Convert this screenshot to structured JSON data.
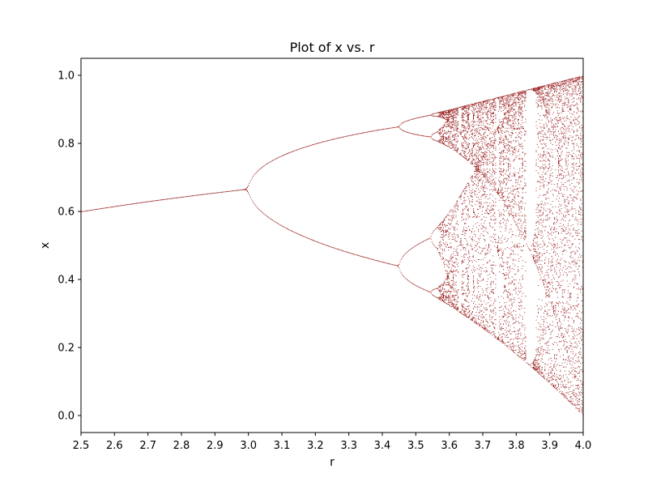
{
  "chart_data": {
    "type": "scatter",
    "title": "Plot of x vs. r",
    "xlabel": "r",
    "ylabel": "x",
    "xlim": [
      2.5,
      4.0
    ],
    "ylim": [
      -0.05,
      1.05
    ],
    "xticks": [
      "2.5",
      "2.6",
      "2.7",
      "2.8",
      "2.9",
      "3.0",
      "3.1",
      "3.2",
      "3.3",
      "3.4",
      "3.5",
      "3.6",
      "3.7",
      "3.8",
      "3.9",
      "4.0"
    ],
    "yticks": [
      "0.0",
      "0.2",
      "0.4",
      "0.6",
      "0.8",
      "1.0"
    ],
    "grid": false,
    "series": [
      {
        "color": "#8b0000",
        "description_points": [
          [
            2.5,
            0.6
          ],
          [
            2.6,
            0.615
          ],
          [
            2.7,
            0.63
          ],
          [
            2.8,
            0.643
          ],
          [
            2.9,
            0.655
          ],
          [
            2.95,
            0.661
          ],
          [
            3.0,
            0.7
          ],
          [
            3.0,
            0.62
          ],
          [
            3.1,
            0.765
          ],
          [
            3.1,
            0.558
          ],
          [
            3.2,
            0.799
          ],
          [
            3.2,
            0.513
          ],
          [
            3.3,
            0.824
          ],
          [
            3.3,
            0.48
          ],
          [
            3.4,
            0.842
          ],
          [
            3.4,
            0.452
          ],
          [
            3.45,
            0.85
          ],
          [
            3.45,
            0.44
          ],
          [
            3.5,
            0.875
          ],
          [
            3.5,
            0.827
          ],
          [
            3.5,
            0.501
          ],
          [
            3.5,
            0.383
          ],
          [
            3.55,
            0.888
          ],
          [
            3.55,
            0.812
          ],
          [
            3.55,
            0.54
          ],
          [
            3.55,
            0.355
          ],
          [
            3.6,
            0.9
          ],
          [
            3.6,
            0.32
          ],
          [
            3.7,
            0.925
          ],
          [
            3.7,
            0.25
          ],
          [
            3.8,
            0.95
          ],
          [
            3.8,
            0.18
          ],
          [
            3.9,
            0.975
          ],
          [
            3.9,
            0.1
          ],
          [
            4.0,
            1.0
          ],
          [
            4.0,
            0.0
          ]
        ]
      }
    ]
  }
}
